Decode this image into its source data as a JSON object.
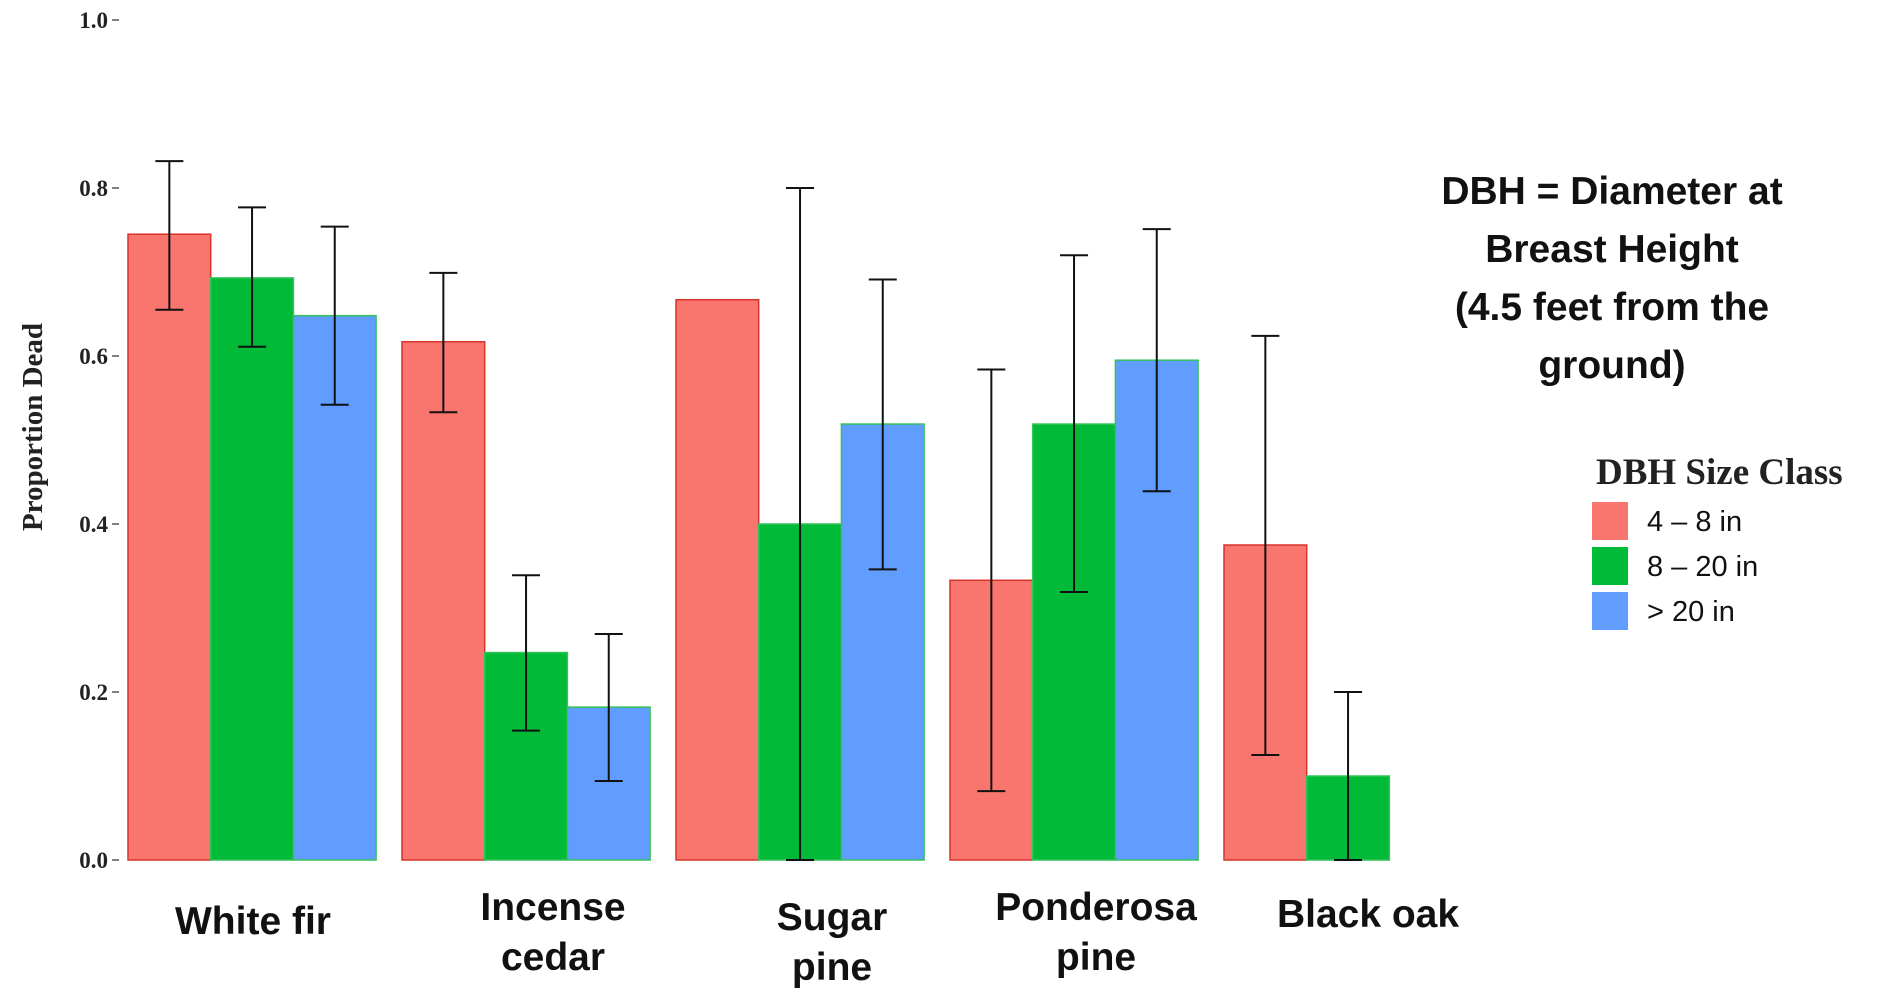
{
  "chart_data": {
    "type": "bar",
    "categories": [
      [
        "White fir"
      ],
      [
        "Incense",
        "cedar"
      ],
      [
        "Sugar",
        "pine"
      ],
      [
        "Ponderosa",
        "pine"
      ],
      [
        "Black oak"
      ]
    ],
    "ylabel": "Proportion Dead",
    "ylim": [
      0,
      1.0
    ],
    "yticks": [
      "0.0",
      "0.2",
      "0.4",
      "0.6",
      "0.8",
      "1.0"
    ],
    "grid": false,
    "legend_position": "right",
    "legend_title": "DBH Size Class",
    "series": [
      {
        "name": "4 – 8 in",
        "color": "#F8766D",
        "values": [
          0.745,
          0.617,
          0.667,
          0.333,
          0.375
        ],
        "error_low": [
          0.655,
          0.533,
          null,
          0.082,
          0.125
        ],
        "error_high": [
          0.832,
          0.699,
          null,
          0.584,
          0.624
        ]
      },
      {
        "name": "8 – 20 in",
        "color": "#00BA38",
        "values": [
          0.693,
          0.247,
          0.4,
          0.519,
          0.1
        ],
        "error_low": [
          0.611,
          0.154,
          0.0,
          0.319,
          0.0
        ],
        "error_high": [
          0.777,
          0.339,
          0.8,
          0.72,
          0.2
        ]
      },
      {
        "name": "> 20 in",
        "color": "#619CFF",
        "values": [
          0.648,
          0.182,
          0.519,
          0.595,
          0.0
        ],
        "error_low": [
          0.542,
          0.094,
          0.346,
          0.439,
          0.0
        ],
        "error_high": [
          0.754,
          0.269,
          0.691,
          0.751,
          0.0
        ]
      }
    ],
    "annotation": [
      "DBH = Diameter at",
      "Breast Height",
      "(4.5 feet from the",
      "ground)"
    ]
  }
}
